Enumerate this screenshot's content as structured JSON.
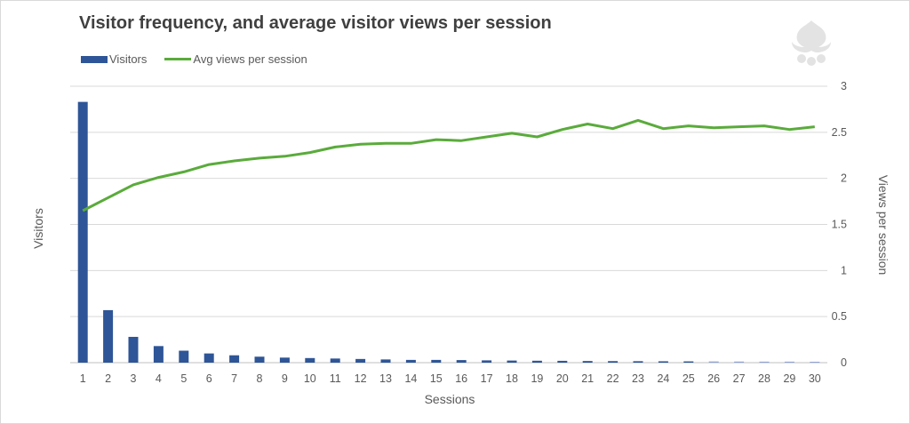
{
  "chart_data": {
    "type": "bar+line",
    "title": "Visitor frequency, and average visitor views per session",
    "xlabel": "Sessions",
    "ylabel_left": "Visitors",
    "ylabel_right": "Views per session",
    "categories": [
      "1",
      "2",
      "3",
      "4",
      "5",
      "6",
      "7",
      "8",
      "9",
      "10",
      "11",
      "12",
      "13",
      "14",
      "15",
      "16",
      "17",
      "18",
      "19",
      "20",
      "21",
      "22",
      "23",
      "24",
      "25",
      "26",
      "27",
      "28",
      "29",
      "30"
    ],
    "y_right_ticks": [
      "0",
      "0.5",
      "1",
      "1.5",
      "2",
      "2.5",
      "3"
    ],
    "y_range": [
      0,
      3
    ],
    "grid": true,
    "legend_position": "top-left",
    "series": [
      {
        "name": "Visitors",
        "type": "bar",
        "axis": "left",
        "color": "#2e5597",
        "values": [
          2.83,
          0.57,
          0.28,
          0.18,
          0.13,
          0.1,
          0.08,
          0.065,
          0.055,
          0.05,
          0.045,
          0.04,
          0.035,
          0.03,
          0.03,
          0.028,
          0.025,
          0.023,
          0.021,
          0.02,
          0.018,
          0.017,
          0.016,
          0.015,
          0.014,
          0.013,
          0.012,
          0.011,
          0.011,
          0.01
        ]
      },
      {
        "name": "Avg views per session",
        "type": "line",
        "axis": "right",
        "color": "#5aab3b",
        "values": [
          1.65,
          1.79,
          1.93,
          2.01,
          2.07,
          2.15,
          2.19,
          2.22,
          2.24,
          2.28,
          2.34,
          2.37,
          2.38,
          2.38,
          2.42,
          2.41,
          2.45,
          2.49,
          2.45,
          2.53,
          2.59,
          2.54,
          2.63,
          2.54,
          2.57,
          2.55,
          2.56,
          2.57,
          2.53,
          2.56
        ]
      }
    ]
  }
}
